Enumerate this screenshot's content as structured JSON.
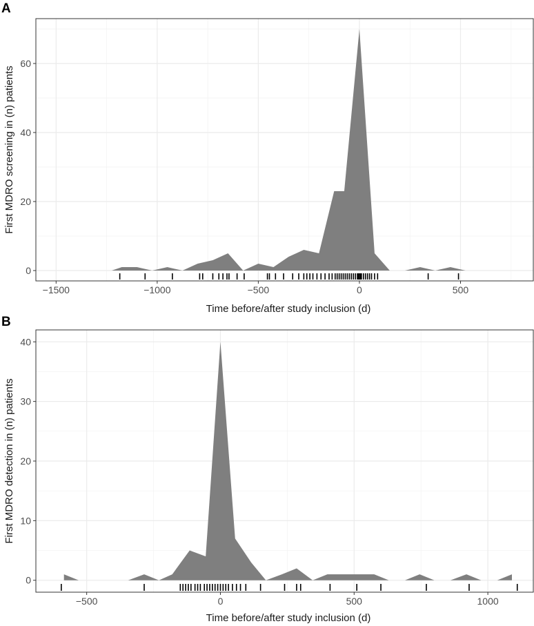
{
  "chart_data": [
    {
      "panel": "A",
      "type": "area",
      "xlabel": "Time before/after study inclusion (d)",
      "ylabel": "First MDRO screening in (n) patients",
      "xlim": [
        -1600,
        860
      ],
      "ylim": [
        -3,
        73
      ],
      "xticks": [
        -1500,
        -1000,
        -500,
        0,
        500
      ],
      "yticks": [
        0,
        20,
        40,
        60
      ],
      "grid": true,
      "fill_color": "#7f7f7f",
      "x": [
        -1225,
        -1175,
        -1100,
        -1025,
        -950,
        -875,
        -800,
        -725,
        -650,
        -575,
        -500,
        -425,
        -350,
        -275,
        -200,
        -125,
        -75,
        0,
        75,
        150,
        225,
        300,
        375,
        450,
        525
      ],
      "y": [
        0,
        1,
        1,
        0,
        1,
        0,
        2,
        3,
        5,
        0,
        2,
        1,
        4,
        6,
        5,
        23,
        23,
        70,
        5,
        0,
        0,
        1,
        0,
        1,
        0
      ],
      "rug": [
        -1185,
        -1060,
        -925,
        -790,
        -775,
        -725,
        -695,
        -675,
        -655,
        -645,
        -605,
        -570,
        -455,
        -445,
        -415,
        -375,
        -330,
        -300,
        -275,
        -260,
        -245,
        -230,
        -210,
        -190,
        -170,
        -150,
        -135,
        -120,
        -110,
        -100,
        -90,
        -80,
        -70,
        -60,
        -50,
        -40,
        -30,
        -20,
        -10,
        -5,
        0,
        5,
        10,
        20,
        30,
        40,
        50,
        60,
        75,
        90,
        340,
        490
      ]
    },
    {
      "panel": "B",
      "type": "area",
      "xlabel": "Time before/after study inclusion (d)",
      "ylabel": "First MDRO detection in (n) patients",
      "xlim": [
        -690,
        1170
      ],
      "ylim": [
        -2,
        42
      ],
      "xticks": [
        -500,
        0,
        500,
        1000
      ],
      "yticks": [
        0,
        10,
        20,
        30,
        40
      ],
      "grid": true,
      "fill_color": "#7f7f7f",
      "x": [
        -585,
        -530,
        -345,
        -285,
        -230,
        -180,
        -115,
        -55,
        0,
        55,
        115,
        170,
        230,
        285,
        345,
        400,
        460,
        515,
        575,
        630,
        690,
        745,
        800,
        860,
        920,
        975,
        1035,
        1090
      ],
      "y": [
        1,
        0,
        0,
        1,
        0,
        1,
        5,
        4,
        40,
        7,
        3,
        0,
        1,
        2,
        0,
        1,
        1,
        1,
        1,
        0,
        0,
        1,
        0,
        0,
        1,
        0,
        0,
        1
      ],
      "rug": [
        -595,
        -285,
        -150,
        -140,
        -130,
        -120,
        -110,
        -95,
        -85,
        -75,
        -60,
        -50,
        -40,
        -30,
        -20,
        -10,
        0,
        10,
        20,
        30,
        45,
        60,
        75,
        95,
        150,
        240,
        285,
        300,
        410,
        510,
        600,
        770,
        930,
        1110
      ]
    }
  ]
}
